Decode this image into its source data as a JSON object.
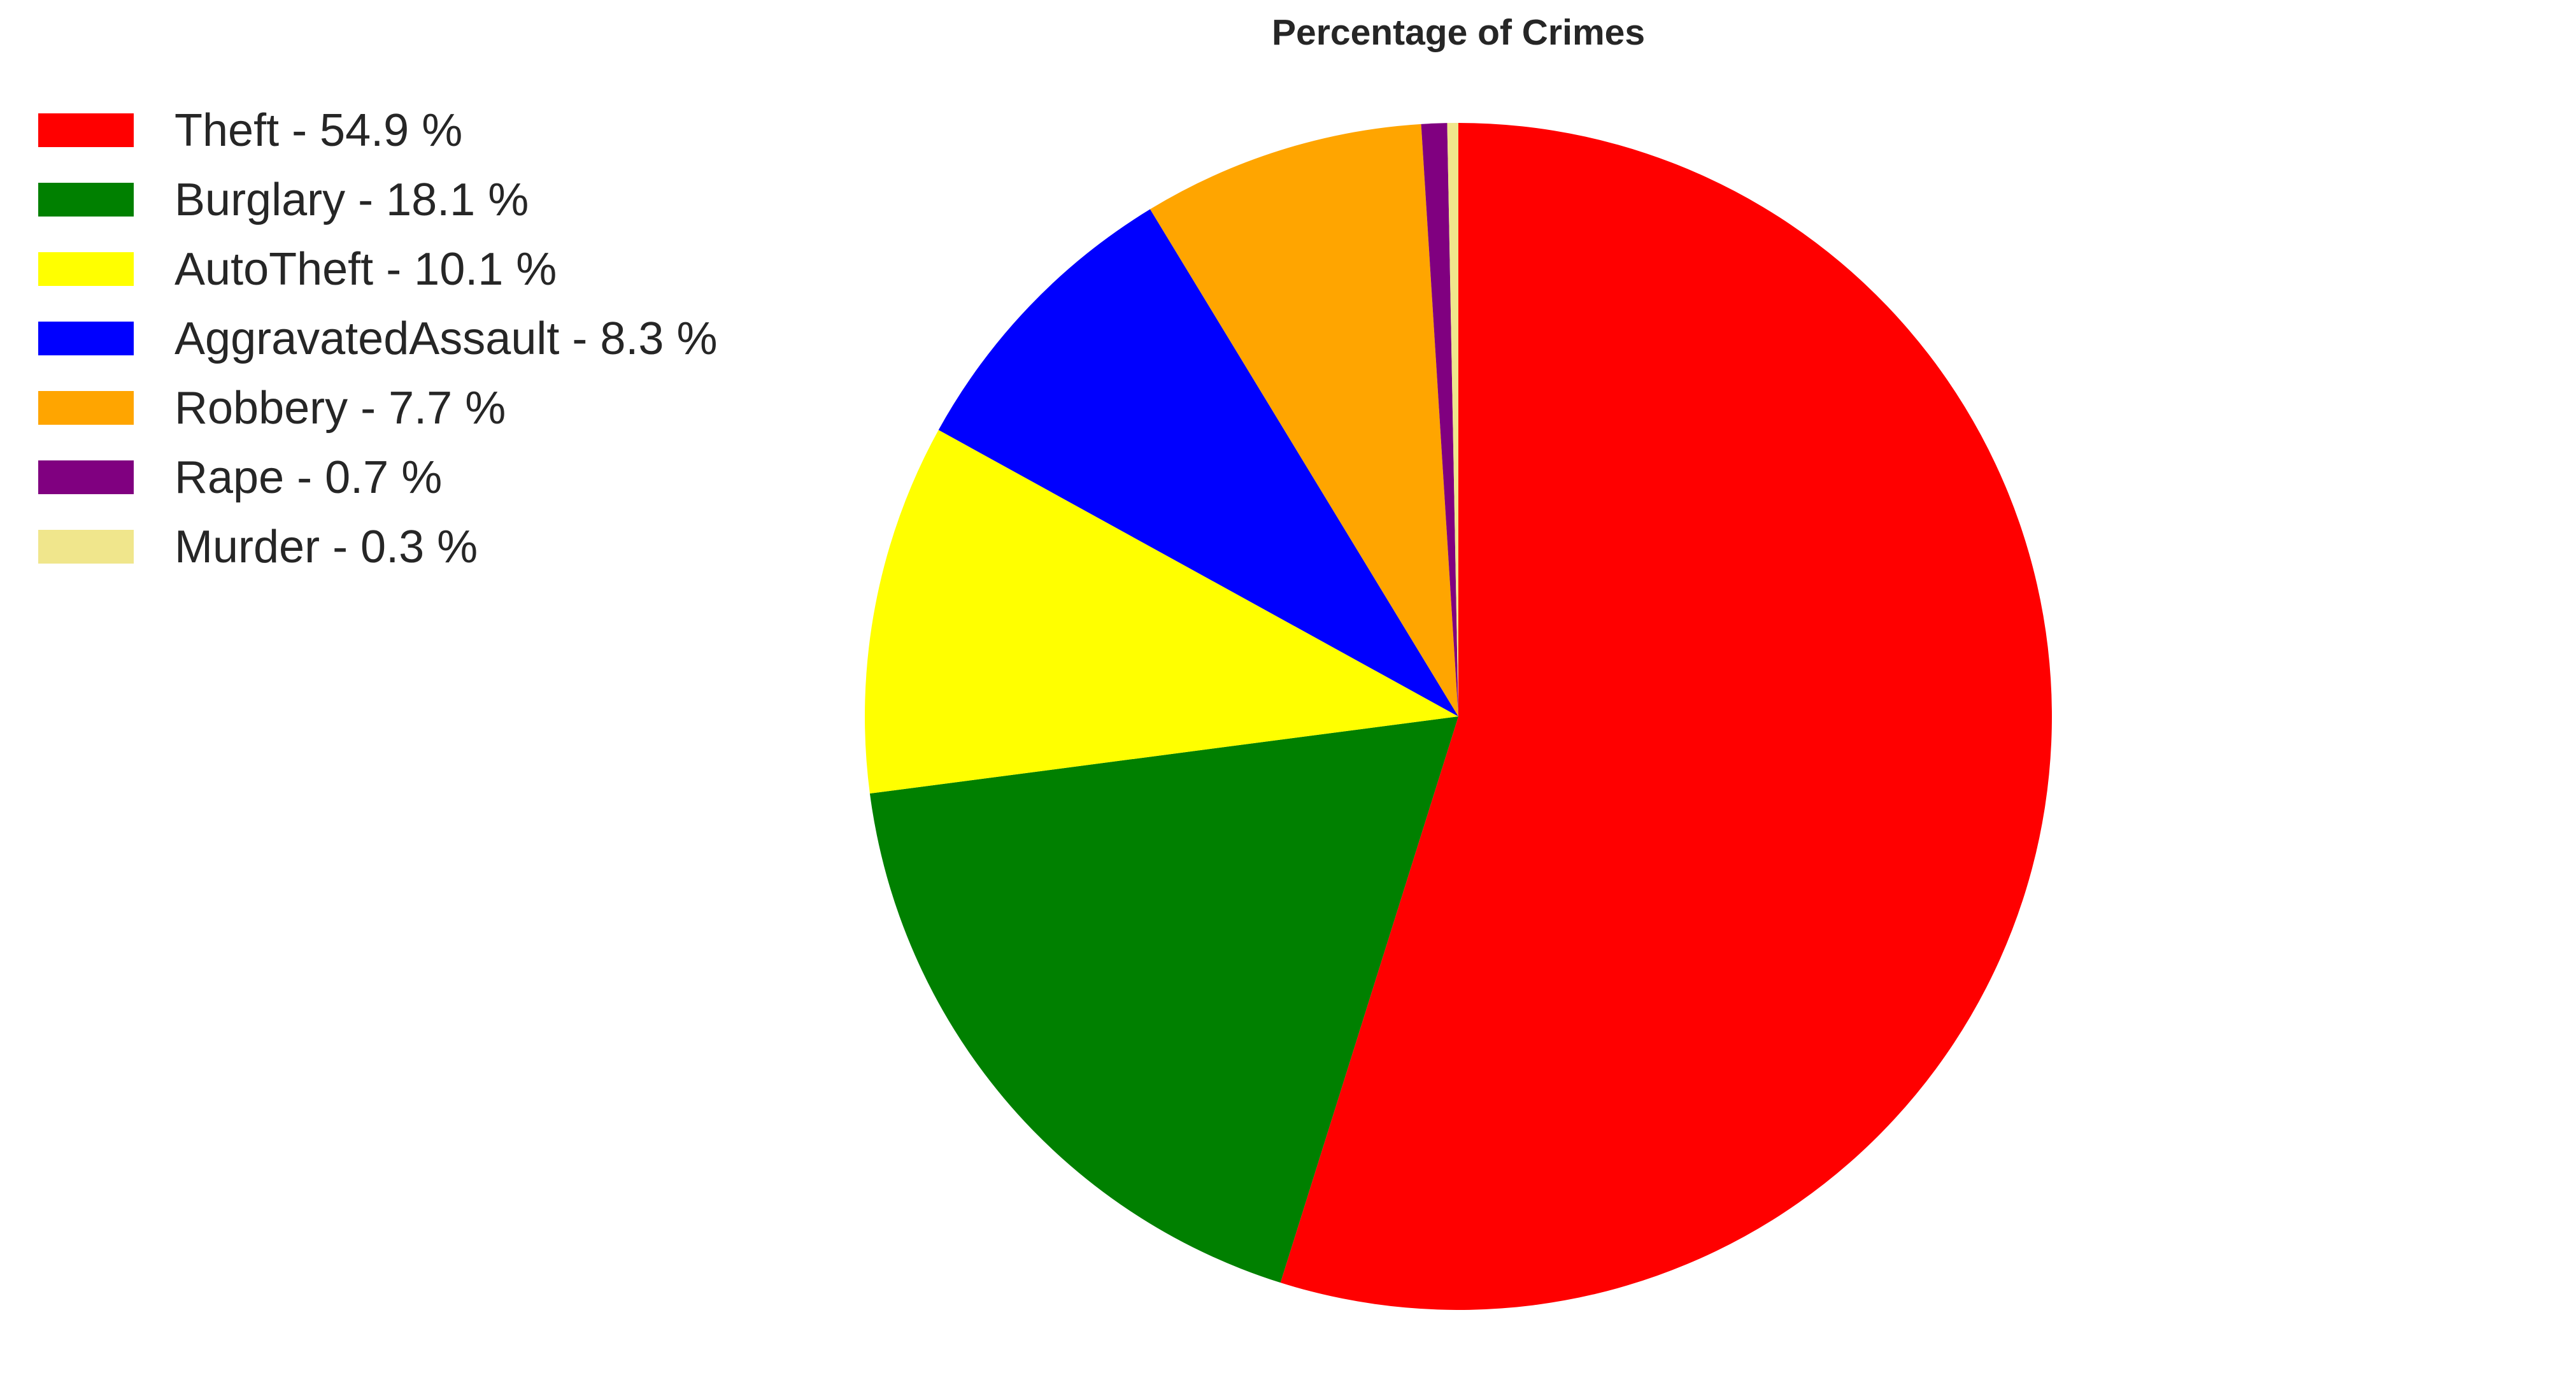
{
  "chart_data": {
    "type": "pie",
    "title": "Percentage of Crimes",
    "start_angle_deg": 90,
    "direction": "clockwise",
    "legend_position": "top-left",
    "slices": [
      {
        "label": "Theft",
        "value": 54.9,
        "legend": "Theft - 54.9 %",
        "color": "#ff0000"
      },
      {
        "label": "Burglary",
        "value": 18.1,
        "legend": "Burglary - 18.1 %",
        "color": "#008000"
      },
      {
        "label": "AutoTheft",
        "value": 10.1,
        "legend": "AutoTheft - 10.1 %",
        "color": "#ffff00"
      },
      {
        "label": "AggravatedAssault",
        "value": 8.3,
        "legend": "AggravatedAssault - 8.3 %",
        "color": "#0000ff"
      },
      {
        "label": "Robbery",
        "value": 7.7,
        "legend": "Robbery - 7.7 %",
        "color": "#ffa500"
      },
      {
        "label": "Rape",
        "value": 0.7,
        "legend": "Rape - 0.7 %",
        "color": "#800080"
      },
      {
        "label": "Murder",
        "value": 0.3,
        "legend": "Murder - 0.3 %",
        "color": "#f0e68c"
      }
    ]
  }
}
